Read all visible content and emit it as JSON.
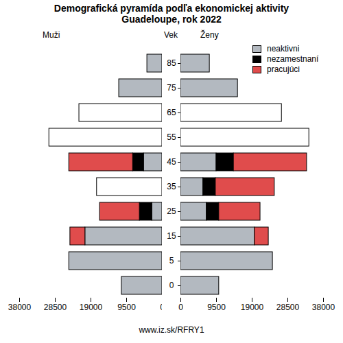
{
  "chart_data": {
    "type": "bar",
    "orientation": "horizontal",
    "stacked": true,
    "grid": false,
    "title": "Demografická pyramída podľa ekonomickej aktivity\nGuadeloupe, rok 2022",
    "y_label": "Vek",
    "caption": "www.iz.sk/RFRY1",
    "legend": "top-right",
    "categories": [
      0,
      5,
      15,
      25,
      35,
      45,
      55,
      65,
      75,
      85
    ],
    "panels": [
      {
        "title": "Muži",
        "xlim": [
          0,
          38000
        ],
        "xticks": [
          0,
          9500,
          19000,
          28500,
          38000
        ],
        "series": [
          {
            "name": "neaktivni",
            "color": "#b3b9c0",
            "values": [
              10800,
              24800,
              20500,
              2700,
              null,
              4900,
              null,
              null,
              11500,
              4000
            ]
          },
          {
            "name": "nezamestnaní",
            "color": "#000000",
            "values": [
              null,
              null,
              null,
              3300,
              null,
              2900,
              null,
              null,
              null,
              null
            ]
          },
          {
            "name": "pracujúci",
            "color": "#e04c4c",
            "values": [
              null,
              null,
              4000,
              10600,
              null,
              17000,
              null,
              null,
              null,
              null
            ]
          },
          {
            "name": null,
            "color": "#ffffff",
            "values": [
              null,
              null,
              null,
              null,
              17400,
              null,
              30100,
              22100,
              null,
              null
            ]
          }
        ]
      },
      {
        "title": "Ženy",
        "xlim": [
          0,
          38000
        ],
        "xticks": [
          0,
          9500,
          19000,
          28500,
          38000
        ],
        "series": [
          {
            "name": "neaktivni",
            "color": "#b3b9c0",
            "values": [
              10200,
              24500,
              19700,
              6900,
              6000,
              9500,
              null,
              null,
              15200,
              7700
            ]
          },
          {
            "name": "nezamestnaní",
            "color": "#000000",
            "values": [
              null,
              null,
              null,
              3300,
              3300,
              4600,
              null,
              null,
              null,
              null
            ]
          },
          {
            "name": "pracujúci",
            "color": "#e04c4c",
            "values": [
              null,
              null,
              3700,
              11000,
              15700,
              19500,
              null,
              null,
              null,
              null
            ]
          },
          {
            "name": null,
            "color": "#ffffff",
            "values": [
              null,
              null,
              null,
              null,
              null,
              null,
              34200,
              26900,
              null,
              null
            ]
          }
        ]
      }
    ]
  }
}
